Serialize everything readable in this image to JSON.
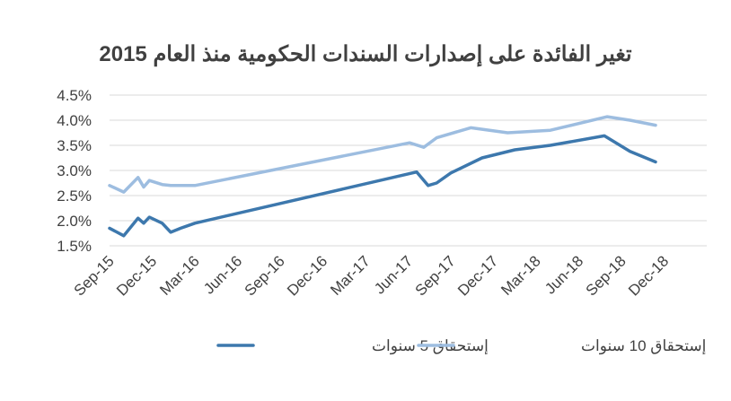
{
  "chart_data": {
    "type": "line",
    "title": "تغير الفائدة على إصدارات السندات الحكومية منذ العام 2015",
    "xlabel": "",
    "ylabel": "",
    "ylim": [
      1.5,
      4.5
    ],
    "yticks": [
      "4.5%",
      "4.0%",
      "3.5%",
      "3.0%",
      "2.5%",
      "2.0%",
      "1.5%"
    ],
    "ytick_values": [
      4.5,
      4.0,
      3.5,
      3.0,
      2.5,
      2.0,
      1.5
    ],
    "xticks": [
      "Sep-15",
      "Dec-15",
      "Mar-16",
      "Jun-16",
      "Sep-16",
      "Dec-16",
      "Mar-17",
      "Jun-17",
      "Sep-17",
      "Dec-17",
      "Mar-18",
      "Jun-18",
      "Sep-18",
      "Dec-18"
    ],
    "xtick_months": [
      0,
      3,
      6,
      9,
      12,
      15,
      18,
      21,
      24,
      27,
      30,
      33,
      36,
      39
    ],
    "x_start": "Sep-15",
    "x_end": "Feb-19",
    "grid": true,
    "legend_position": "bottom",
    "series": [
      {
        "name": "إستحقاق 5 سنوات",
        "color": "#3d78ad",
        "x": [
          0,
          1,
          2,
          2.4,
          2.8,
          3.7,
          4.3,
          5,
          6,
          21.6,
          22.4,
          23,
          24,
          26.2,
          28.5,
          31,
          34.8,
          36.6,
          38.4,
          39.4,
          40.3,
          42
        ],
        "y": [
          1.85,
          1.7,
          2.05,
          1.95,
          2.07,
          1.95,
          1.77,
          1.85,
          1.95,
          2.97,
          2.7,
          2.75,
          2.95,
          3.25,
          3.41,
          3.5,
          3.69,
          3.38,
          3.17,
          null,
          null,
          null
        ]
      },
      {
        "name": "إستحقاق 10 سنوات",
        "color": "#9dbde0",
        "x": [
          0,
          1,
          2,
          2.4,
          2.8,
          3.7,
          4.3,
          6,
          21.1,
          22.1,
          23,
          25.4,
          28,
          31,
          35,
          36.6,
          38.4
        ],
        "y": [
          2.7,
          2.57,
          2.86,
          2.67,
          2.8,
          2.72,
          2.7,
          2.7,
          3.55,
          3.46,
          3.65,
          3.85,
          3.75,
          3.8,
          4.07,
          4.0,
          3.9
        ]
      }
    ]
  }
}
